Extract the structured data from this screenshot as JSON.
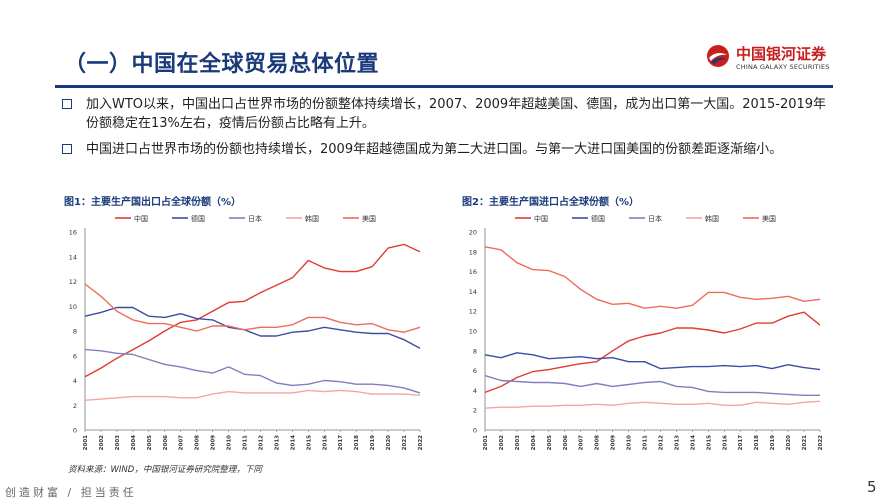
{
  "page": {
    "title": "（一）中国在全球贸易总体位置",
    "logo_cn": "中国银河证券",
    "logo_en": "CHINA GALAXY SECURITIES",
    "bullets": [
      "加入WTO以来，中国出口占世界市场的份额整体持续增长，2007、2009年超越美国、德国，成为出口第一大国。2015-2019年份额稳定在13%左右，疫情后份额占比略有上升。",
      "中国进口占世界市场的份额也持续增长，2009年超越德国成为第二大进口国。与第一大进口国美国的份额差距逐渐缩小。"
    ],
    "source": "资料来源：WIND，中国银河证券研究院整理，下同",
    "footer": "创造财富 / 担当责任",
    "page_number": "5"
  },
  "colors": {
    "中国": "#e03c31",
    "德国": "#3b4ea0",
    "日本": "#7f7fbf",
    "韩国": "#f2a6a6",
    "美国": "#ef6b5c"
  },
  "chart_data": [
    {
      "type": "line",
      "title": "图1：主要生产国出口占全球份额（%）",
      "x": [
        "2001",
        "2002",
        "2003",
        "2004",
        "2005",
        "2006",
        "2007",
        "2008",
        "2009",
        "2010",
        "2011",
        "2012",
        "2013",
        "2014",
        "2015",
        "2016",
        "2017",
        "2018",
        "2019",
        "2020",
        "2021",
        "2022"
      ],
      "ylim": [
        0,
        16
      ],
      "yticks": [
        0,
        2,
        4,
        6,
        8,
        10,
        12,
        14,
        16
      ],
      "legend_position": "top",
      "grid": false,
      "series": [
        {
          "name": "中国",
          "values": [
            4.3,
            5.0,
            5.8,
            6.5,
            7.2,
            8.0,
            8.7,
            8.9,
            9.6,
            10.3,
            10.4,
            11.1,
            11.7,
            12.3,
            13.7,
            13.1,
            12.8,
            12.8,
            13.2,
            14.7,
            15.0,
            14.4
          ]
        },
        {
          "name": "德国",
          "values": [
            9.2,
            9.5,
            9.9,
            9.9,
            9.2,
            9.1,
            9.4,
            9.0,
            8.9,
            8.3,
            8.1,
            7.6,
            7.6,
            7.9,
            8.0,
            8.3,
            8.1,
            7.9,
            7.8,
            7.8,
            7.3,
            6.6
          ]
        },
        {
          "name": "日本",
          "values": [
            6.5,
            6.4,
            6.2,
            6.1,
            5.7,
            5.3,
            5.1,
            4.8,
            4.6,
            5.1,
            4.5,
            4.4,
            3.8,
            3.6,
            3.7,
            4.0,
            3.9,
            3.7,
            3.7,
            3.6,
            3.4,
            3.0
          ]
        },
        {
          "name": "韩国",
          "values": [
            2.4,
            2.5,
            2.6,
            2.7,
            2.7,
            2.7,
            2.6,
            2.6,
            2.9,
            3.1,
            3.0,
            3.0,
            3.0,
            3.0,
            3.2,
            3.1,
            3.2,
            3.1,
            2.9,
            2.9,
            2.9,
            2.8
          ]
        },
        {
          "name": "美国",
          "values": [
            11.8,
            10.8,
            9.6,
            8.9,
            8.6,
            8.6,
            8.3,
            8.0,
            8.4,
            8.4,
            8.1,
            8.3,
            8.3,
            8.5,
            9.1,
            9.1,
            8.7,
            8.5,
            8.6,
            8.1,
            7.9,
            8.3
          ]
        }
      ]
    },
    {
      "type": "line",
      "title": "图2：主要生产国进口占全球份额（%）",
      "x": [
        "2001",
        "2002",
        "2003",
        "2004",
        "2005",
        "2006",
        "2007",
        "2008",
        "2009",
        "2010",
        "2011",
        "2012",
        "2013",
        "2014",
        "2015",
        "2016",
        "2017",
        "2018",
        "2019",
        "2020",
        "2021",
        "2022"
      ],
      "ylim": [
        0,
        20
      ],
      "yticks": [
        0,
        2,
        4,
        6,
        8,
        10,
        12,
        14,
        16,
        18,
        20
      ],
      "legend_position": "top",
      "grid": false,
      "series": [
        {
          "name": "中国",
          "values": [
            3.8,
            4.4,
            5.3,
            5.9,
            6.1,
            6.4,
            6.7,
            6.9,
            8.0,
            9.0,
            9.5,
            9.8,
            10.3,
            10.3,
            10.1,
            9.8,
            10.2,
            10.8,
            10.8,
            11.5,
            11.9,
            10.6
          ]
        },
        {
          "name": "德国",
          "values": [
            7.6,
            7.3,
            7.8,
            7.6,
            7.2,
            7.3,
            7.4,
            7.2,
            7.3,
            6.9,
            6.9,
            6.2,
            6.3,
            6.4,
            6.4,
            6.5,
            6.4,
            6.5,
            6.2,
            6.6,
            6.3,
            6.1
          ]
        },
        {
          "name": "日本",
          "values": [
            5.5,
            5.0,
            4.9,
            4.8,
            4.8,
            4.7,
            4.4,
            4.7,
            4.4,
            4.6,
            4.8,
            4.9,
            4.4,
            4.3,
            3.9,
            3.8,
            3.8,
            3.8,
            3.7,
            3.6,
            3.5,
            3.5
          ]
        },
        {
          "name": "韩国",
          "values": [
            2.2,
            2.3,
            2.3,
            2.4,
            2.4,
            2.5,
            2.5,
            2.6,
            2.5,
            2.7,
            2.8,
            2.7,
            2.6,
            2.6,
            2.7,
            2.5,
            2.5,
            2.8,
            2.7,
            2.6,
            2.8,
            2.9
          ]
        },
        {
          "name": "美国",
          "values": [
            18.5,
            18.2,
            16.9,
            16.2,
            16.1,
            15.5,
            14.2,
            13.2,
            12.7,
            12.8,
            12.3,
            12.5,
            12.3,
            12.6,
            13.9,
            13.9,
            13.4,
            13.2,
            13.3,
            13.5,
            13.0,
            13.2
          ]
        }
      ]
    }
  ]
}
